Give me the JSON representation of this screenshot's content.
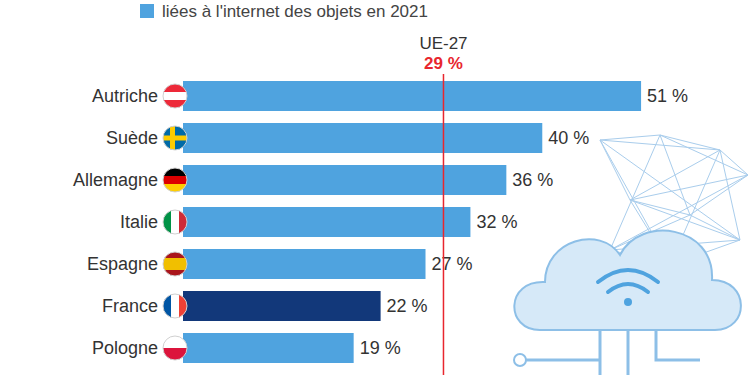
{
  "chart_data": {
    "type": "bar",
    "orientation": "horizontal",
    "subtitle": "liées à l'internet des objets en 2021",
    "categories": [
      "Autriche",
      "Suède",
      "Allemagne",
      "Italie",
      "Espagne",
      "France",
      "Pologne"
    ],
    "values": [
      51,
      40,
      36,
      32,
      27,
      22,
      19
    ],
    "value_labels": [
      "51 %",
      "40 %",
      "36 %",
      "32 %",
      "27 %",
      "22 %",
      "19 %"
    ],
    "colors": [
      "#4fa3df",
      "#4fa3df",
      "#4fa3df",
      "#4fa3df",
      "#4fa3df",
      "#12387a",
      "#4fa3df"
    ],
    "xlim": [
      0,
      55
    ],
    "data_labels": true,
    "tick_labels": false,
    "grid": false,
    "reference_line": {
      "label": "UE-27",
      "value": 29,
      "value_label": "29 %"
    }
  }
}
